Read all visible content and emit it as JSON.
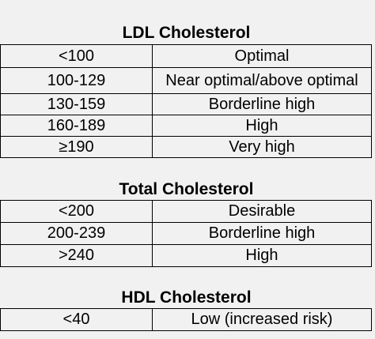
{
  "sections": [
    {
      "title": "LDL Cholesterol",
      "rows": [
        [
          "<100",
          "Optimal"
        ],
        [
          "100-129",
          "Near optimal/above optimal"
        ],
        [
          "130-159",
          "Borderline high"
        ],
        [
          "160-189",
          "High"
        ],
        [
          "≥190",
          "Very high"
        ]
      ]
    },
    {
      "title": "Total Cholesterol",
      "rows": [
        [
          "<200",
          "Desirable"
        ],
        [
          "200-239",
          "Borderline high"
        ],
        [
          ">240",
          "High"
        ]
      ]
    },
    {
      "title": "HDL Cholesterol",
      "rows": [
        [
          "<40",
          "Low (increased risk)"
        ]
      ]
    }
  ]
}
